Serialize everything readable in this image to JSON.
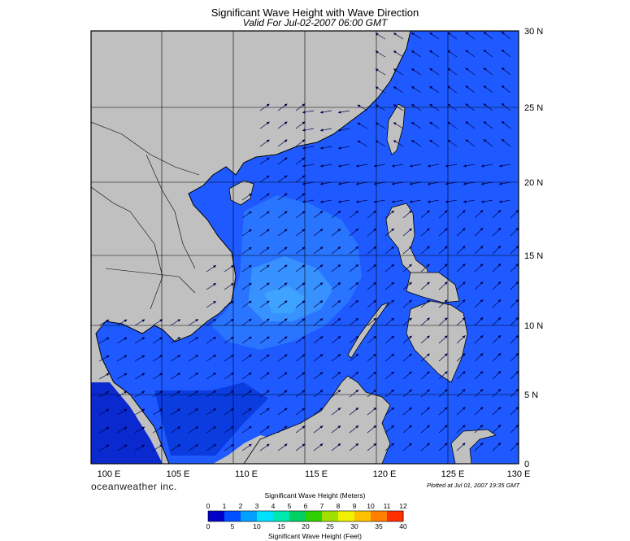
{
  "header": {
    "title": "Significant Wave Height with Wave Direction",
    "subtitle": "Valid For Jul-02-2007 06:00 GMT"
  },
  "footer": {
    "brand": "oceanweather inc.",
    "plotted": "Plotted at Jul 01, 2007 19:35 GMT"
  },
  "map": {
    "lon_range": [
      100,
      130
    ],
    "lat_range": [
      0,
      30
    ],
    "lon_ticks": [
      "100 E",
      "105 E",
      "110 E",
      "115 E",
      "120 E",
      "125 E",
      "130 E"
    ],
    "lat_ticks": [
      "30 N",
      "25 N",
      "20 N",
      "15 N",
      "10 N",
      "5 N",
      "0"
    ],
    "land_color": "#c0c0c0",
    "ocean_color": "#1e5aff",
    "grid": true
  },
  "colorbar": {
    "title_top": "Significant Wave Height (Meters)",
    "title_bottom": "Significant Wave Height (Feet)",
    "meters_ticks": [
      "0",
      "1",
      "2",
      "3",
      "4",
      "5",
      "6",
      "7",
      "8",
      "9",
      "10",
      "11",
      "12"
    ],
    "feet_ticks": [
      "0",
      "5",
      "10",
      "15",
      "20",
      "25",
      "30",
      "35",
      "40"
    ],
    "colors": [
      "#0000c8",
      "#0050ff",
      "#00a0ff",
      "#00e0ff",
      "#00e8b0",
      "#00d060",
      "#30d000",
      "#a0e000",
      "#f0f000",
      "#ffc000",
      "#ff8000",
      "#ff3000"
    ]
  }
}
